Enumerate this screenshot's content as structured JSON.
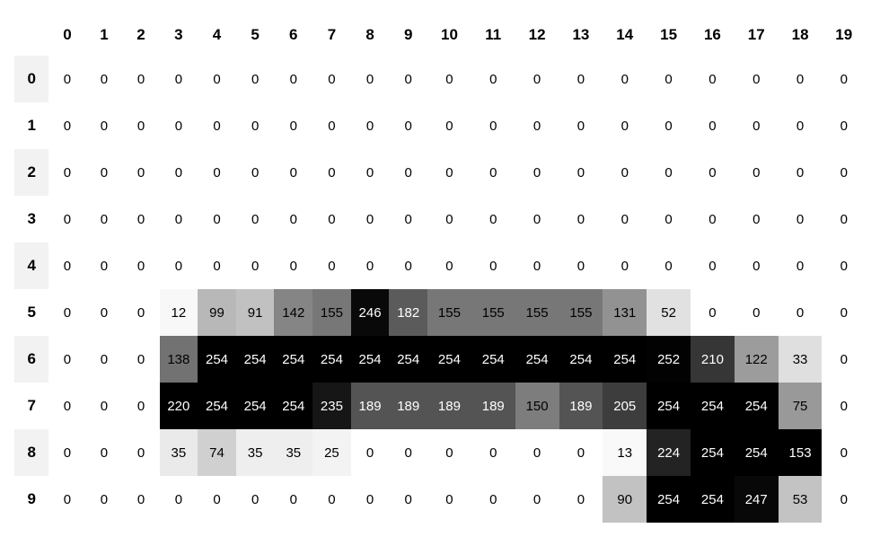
{
  "table": {
    "corner_label": "",
    "col_headers": [
      "0",
      "1",
      "2",
      "3",
      "4",
      "5",
      "6",
      "7",
      "8",
      "9",
      "10",
      "11",
      "12",
      "13",
      "14",
      "15",
      "16",
      "17",
      "18",
      "19"
    ],
    "row_headers": [
      "0",
      "1",
      "2",
      "3",
      "4",
      "5",
      "6",
      "7",
      "8",
      "9"
    ]
  },
  "chart_data": {
    "type": "heatmap",
    "x_labels": [
      "0",
      "1",
      "2",
      "3",
      "4",
      "5",
      "6",
      "7",
      "8",
      "9",
      "10",
      "11",
      "12",
      "13",
      "14",
      "15",
      "16",
      "17",
      "18",
      "19"
    ],
    "y_labels": [
      "0",
      "1",
      "2",
      "3",
      "4",
      "5",
      "6",
      "7",
      "8",
      "9"
    ],
    "values": [
      [
        0,
        0,
        0,
        0,
        0,
        0,
        0,
        0,
        0,
        0,
        0,
        0,
        0,
        0,
        0,
        0,
        0,
        0,
        0,
        0
      ],
      [
        0,
        0,
        0,
        0,
        0,
        0,
        0,
        0,
        0,
        0,
        0,
        0,
        0,
        0,
        0,
        0,
        0,
        0,
        0,
        0
      ],
      [
        0,
        0,
        0,
        0,
        0,
        0,
        0,
        0,
        0,
        0,
        0,
        0,
        0,
        0,
        0,
        0,
        0,
        0,
        0,
        0
      ],
      [
        0,
        0,
        0,
        0,
        0,
        0,
        0,
        0,
        0,
        0,
        0,
        0,
        0,
        0,
        0,
        0,
        0,
        0,
        0,
        0
      ],
      [
        0,
        0,
        0,
        0,
        0,
        0,
        0,
        0,
        0,
        0,
        0,
        0,
        0,
        0,
        0,
        0,
        0,
        0,
        0,
        0
      ],
      [
        0,
        0,
        0,
        12,
        99,
        91,
        142,
        155,
        246,
        182,
        155,
        155,
        155,
        155,
        131,
        52,
        0,
        0,
        0,
        0
      ],
      [
        0,
        0,
        0,
        138,
        254,
        254,
        254,
        254,
        254,
        254,
        254,
        254,
        254,
        254,
        254,
        252,
        210,
        122,
        33,
        0
      ],
      [
        0,
        0,
        0,
        220,
        254,
        254,
        254,
        235,
        189,
        189,
        189,
        189,
        150,
        189,
        205,
        254,
        254,
        254,
        75,
        0
      ],
      [
        0,
        0,
        0,
        35,
        74,
        35,
        35,
        25,
        0,
        0,
        0,
        0,
        0,
        0,
        13,
        224,
        254,
        254,
        153,
        0
      ],
      [
        0,
        0,
        0,
        0,
        0,
        0,
        0,
        0,
        0,
        0,
        0,
        0,
        0,
        0,
        90,
        254,
        254,
        247,
        53,
        0
      ]
    ],
    "value_range": [
      0,
      254
    ],
    "colormap": "Greys",
    "normalization": "per-column",
    "legend": "none",
    "grid": "off"
  },
  "style": {
    "stripe_color": "#f2f2f2",
    "header_border_color": "#000000",
    "text_dark": "#000000",
    "text_light": "#ffffff",
    "white_text_threshold": 0.7,
    "colormap_anchors": [
      "#ffffff",
      "#f0f0f0",
      "#d9d9d9",
      "#bdbdbd",
      "#969696",
      "#737373",
      "#525252",
      "#252525",
      "#000000"
    ]
  }
}
